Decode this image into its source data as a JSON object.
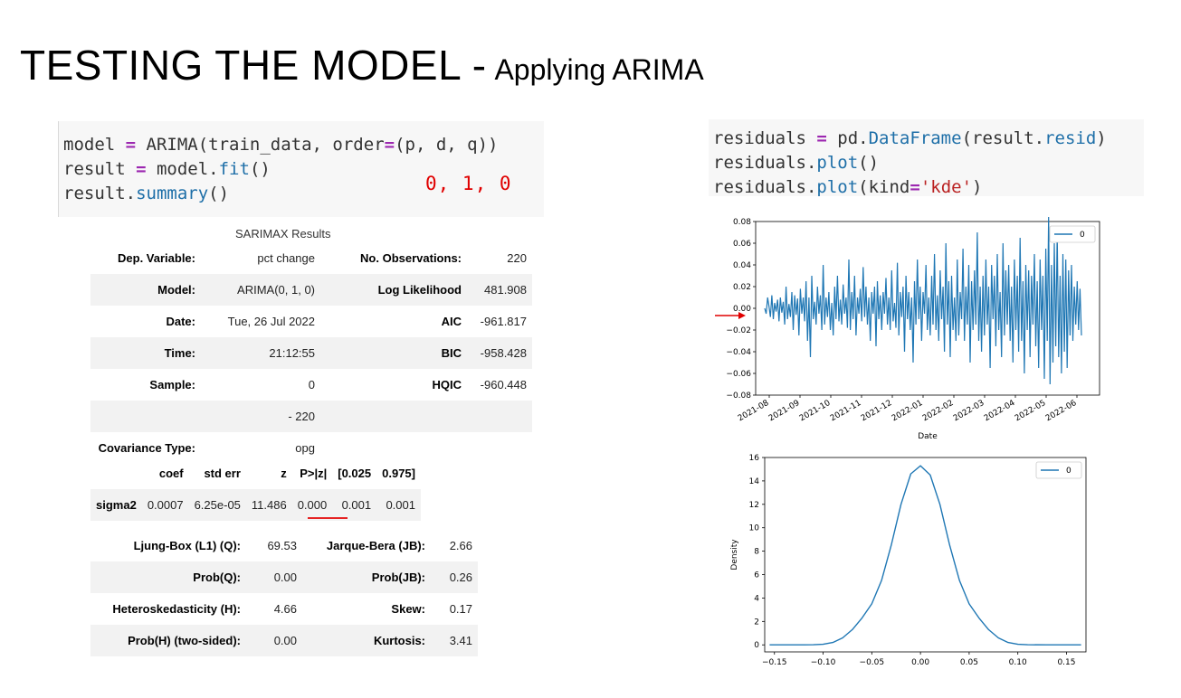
{
  "slide": {
    "title": "TESTING THE MODEL -",
    "subtitle": "Applying ARIMA",
    "annotation": "0, 1, 0"
  },
  "code_left": {
    "lines": [
      "model = ARIMA(train_data, order=(p, d, q))",
      "result = model.fit()",
      "result.summary()"
    ]
  },
  "code_right": {
    "lines": [
      "residuals = pd.DataFrame(result.resid)",
      "residuals.plot()",
      "residuals.plot(kind='kde')"
    ]
  },
  "summary": {
    "caption": "SARIMAX Results",
    "rows": [
      {
        "l1": "Dep. Variable:",
        "v1": "pct change",
        "l2": "No. Observations:",
        "v2": "220"
      },
      {
        "l1": "Model:",
        "v1": "ARIMA(0, 1, 0)",
        "l2": "Log Likelihood",
        "v2": "481.908"
      },
      {
        "l1": "Date:",
        "v1": "Tue, 26 Jul 2022",
        "l2": "AIC",
        "v2": "-961.817"
      },
      {
        "l1": "Time:",
        "v1": "21:12:55",
        "l2": "BIC",
        "v2": "-958.428"
      },
      {
        "l1": "Sample:",
        "v1": "0",
        "l2": "HQIC",
        "v2": "-960.448"
      },
      {
        "l1": "",
        "v1": "- 220",
        "l2": "",
        "v2": ""
      },
      {
        "l1": "Covariance Type:",
        "v1": "opg",
        "l2": "",
        "v2": ""
      }
    ],
    "coef_header": [
      "",
      "coef",
      "std err",
      "z",
      "P>|z|",
      "[0.025",
      "0.975]"
    ],
    "coef_row": [
      "sigma2",
      "0.0007",
      "6.25e-05",
      "11.486",
      "0.000",
      "0.001",
      "0.001"
    ],
    "tests": [
      {
        "l1": "Ljung-Box (L1) (Q):",
        "v1": "69.53",
        "l2": "Jarque-Bera (JB):",
        "v2": "2.66"
      },
      {
        "l1": "Prob(Q):",
        "v1": "0.00",
        "l2": "Prob(JB):",
        "v2": "0.26"
      },
      {
        "l1": "Heteroskedasticity (H):",
        "v1": "4.66",
        "l2": "Skew:",
        "v2": "0.17"
      },
      {
        "l1": "Prob(H) (two-sided):",
        "v1": "0.00",
        "l2": "Kurtosis:",
        "v2": "3.41"
      }
    ]
  },
  "colors": {
    "line": "#1f77b4",
    "accent_red": "#e00000"
  },
  "chart_data": [
    {
      "type": "line",
      "title": "",
      "xlabel": "Date",
      "ylabel": "",
      "legend": [
        "0"
      ],
      "legend_position": "top-right",
      "xticks": [
        "2021-08",
        "2021-09",
        "2021-10",
        "2021-11",
        "2021-12",
        "2022-01",
        "2022-02",
        "2022-03",
        "2022-04",
        "2022-05",
        "2022-06"
      ],
      "yticks": [
        "0.08",
        "0.06",
        "0.04",
        "0.02",
        "0.00",
        "−0.02",
        "−0.04",
        "−0.06",
        "−0.08"
      ],
      "ylim": [
        -0.08,
        0.08
      ],
      "series": [
        {
          "name": "0",
          "values": [
            0.0,
            -0.005,
            0.01,
            0.002,
            -0.008,
            0.012,
            -0.01,
            0.005,
            -0.003,
            0.008,
            -0.012,
            0.01,
            -0.004,
            0.006,
            -0.015,
            0.02,
            -0.01,
            0.004,
            -0.008,
            0.015,
            -0.02,
            0.012,
            -0.006,
            0.009,
            -0.025,
            0.018,
            -0.005,
            0.01,
            -0.012,
            0.025,
            -0.03,
            0.01,
            -0.045,
            0.03,
            -0.01,
            0.006,
            -0.015,
            0.02,
            -0.005,
            0.012,
            -0.02,
            0.04,
            -0.015,
            0.01,
            -0.008,
            0.015,
            -0.02,
            0.005,
            -0.025,
            0.02,
            -0.01,
            0.03,
            -0.012,
            0.008,
            -0.015,
            0.022,
            -0.005,
            0.01,
            -0.018,
            0.045,
            -0.02,
            0.015,
            -0.01,
            0.03,
            -0.025,
            0.01,
            -0.005,
            0.018,
            -0.012,
            0.038,
            -0.008,
            0.02,
            -0.015,
            0.01,
            -0.03,
            0.015,
            -0.005,
            0.02,
            -0.035,
            0.025,
            -0.01,
            0.012,
            -0.02,
            0.015,
            -0.005,
            0.028,
            -0.015,
            0.01,
            -0.02,
            0.035,
            -0.012,
            0.005,
            -0.018,
            0.042,
            -0.025,
            0.015,
            -0.008,
            0.02,
            -0.04,
            0.03,
            -0.01,
            0.015,
            -0.02,
            0.01,
            -0.05,
            0.025,
            -0.015,
            0.045,
            -0.01,
            0.02,
            -0.03,
            0.015,
            -0.005,
            0.04,
            -0.02,
            0.01,
            -0.025,
            0.03,
            -0.015,
            0.05,
            -0.02,
            0.012,
            -0.03,
            0.035,
            -0.01,
            0.02,
            -0.04,
            0.06,
            -0.015,
            0.025,
            -0.045,
            0.03,
            -0.02,
            0.01,
            -0.03,
            0.045,
            -0.025,
            0.015,
            -0.01,
            0.055,
            -0.03,
            0.02,
            -0.015,
            0.04,
            -0.05,
            0.025,
            -0.02,
            0.035,
            -0.015,
            0.07,
            -0.03,
            0.02,
            -0.04,
            0.03,
            -0.025,
            0.045,
            -0.015,
            0.02,
            -0.055,
            0.04,
            -0.01,
            0.03,
            -0.035,
            0.05,
            -0.02,
            0.015,
            -0.045,
            0.06,
            -0.025,
            0.035,
            -0.015,
            0.04,
            -0.03,
            0.02,
            -0.05,
            0.045,
            -0.02,
            0.03,
            -0.04,
            0.065,
            -0.03,
            0.025,
            -0.06,
            0.04,
            -0.02,
            0.035,
            -0.045,
            0.03,
            -0.015,
            0.05,
            -0.035,
            0.025,
            -0.055,
            0.045,
            -0.02,
            0.03,
            -0.065,
            0.055,
            -0.03,
            0.085,
            -0.07,
            0.04,
            -0.05,
            0.06,
            -0.035,
            0.07,
            -0.045,
            0.03,
            -0.06,
            0.05,
            -0.04,
            0.045,
            -0.055,
            0.035,
            -0.025,
            0.04,
            -0.03,
            0.02,
            -0.015,
            0.025,
            -0.02,
            0.018,
            -0.025
          ]
        }
      ]
    },
    {
      "type": "line",
      "title": "",
      "xlabel": "",
      "ylabel": "Density",
      "legend": [
        "0"
      ],
      "legend_position": "top-right",
      "xticks": [
        "−0.15",
        "−0.10",
        "−0.05",
        "0.00",
        "0.05",
        "0.10",
        "0.15"
      ],
      "yticks": [
        "16",
        "14",
        "12",
        "10",
        "8",
        "6",
        "4",
        "2",
        "0"
      ],
      "xlim": [
        -0.16,
        0.17
      ],
      "ylim": [
        -0.6,
        16
      ],
      "series": [
        {
          "name": "0",
          "x": [
            -0.155,
            -0.13,
            -0.11,
            -0.1,
            -0.09,
            -0.08,
            -0.07,
            -0.06,
            -0.05,
            -0.04,
            -0.03,
            -0.02,
            -0.01,
            0.0,
            0.01,
            0.02,
            0.03,
            0.04,
            0.05,
            0.06,
            0.07,
            0.08,
            0.09,
            0.1,
            0.11,
            0.13,
            0.165
          ],
          "values": [
            0.0,
            0.0,
            0.01,
            0.05,
            0.2,
            0.6,
            1.3,
            2.3,
            3.5,
            5.5,
            8.5,
            12.0,
            14.6,
            15.3,
            14.5,
            12.0,
            8.5,
            5.5,
            3.5,
            2.3,
            1.3,
            0.6,
            0.2,
            0.05,
            0.01,
            0.0,
            0.0
          ]
        }
      ]
    }
  ]
}
